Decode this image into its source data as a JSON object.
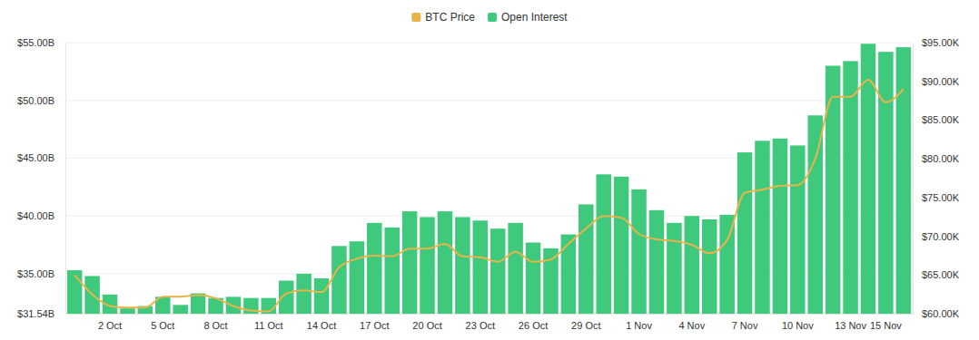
{
  "chart_data": {
    "type": "bar",
    "categories": [
      null,
      null,
      "2 Oct",
      null,
      null,
      "5 Oct",
      null,
      null,
      "8 Oct",
      null,
      null,
      "11 Oct",
      null,
      null,
      "14 Oct",
      null,
      null,
      "17 Oct",
      null,
      null,
      "20 Oct",
      null,
      null,
      "23 Oct",
      null,
      null,
      "26 Oct",
      null,
      null,
      "29 Oct",
      null,
      null,
      "1 Nov",
      null,
      null,
      "4 Nov",
      null,
      null,
      "7 Nov",
      null,
      null,
      "10 Nov",
      null,
      null,
      "13 Nov",
      null,
      "15 Nov",
      null
    ],
    "series": [
      {
        "name": "BTC Price",
        "type": "line",
        "axis": "y2",
        "color": "#e8b44a",
        "values": [
          65000,
          62500,
          61000,
          60800,
          60800,
          62200,
          62200,
          62400,
          62000,
          61000,
          60400,
          60300,
          62600,
          63000,
          62800,
          66000,
          67100,
          67500,
          67400,
          68400,
          68400,
          69000,
          67400,
          67300,
          66700,
          68000,
          66700,
          67000,
          69000,
          71000,
          72600,
          72400,
          70300,
          69600,
          69400,
          68900,
          67800,
          69500,
          75600,
          76000,
          76500,
          76600,
          80000,
          88000,
          88000,
          90200,
          87300,
          89000
        ]
      },
      {
        "name": "Open Interest",
        "type": "bar",
        "color": "#3fc97c",
        "values": [
          35.3,
          34.8,
          33.2,
          32.0,
          32.2,
          33.0,
          32.3,
          33.3,
          32.9,
          33.0,
          32.9,
          32.9,
          34.4,
          35.0,
          34.6,
          37.4,
          37.8,
          39.4,
          39.0,
          40.4,
          39.9,
          40.4,
          39.9,
          39.6,
          38.9,
          39.4,
          37.7,
          37.2,
          38.4,
          41.0,
          43.6,
          43.4,
          42.3,
          40.5,
          39.4,
          40.0,
          39.7,
          40.1,
          45.5,
          46.5,
          46.7,
          46.1,
          48.7,
          53.0,
          53.4,
          54.9,
          54.2,
          54.6
        ]
      }
    ],
    "ylim": [
      31.54,
      55
    ],
    "yticks": [
      {
        "value": 31.54,
        "label": "$31.54B"
      },
      {
        "value": 35,
        "label": "$35.00B"
      },
      {
        "value": 40,
        "label": "$40.00B"
      },
      {
        "value": 45,
        "label": "$45.00B"
      },
      {
        "value": 50,
        "label": "$50.00B"
      },
      {
        "value": 55,
        "label": "$55.00B"
      }
    ],
    "y2lim": [
      60000,
      95000
    ],
    "y2ticks": [
      {
        "value": 60000,
        "label": "$60.00K"
      },
      {
        "value": 65000,
        "label": "$65.00K"
      },
      {
        "value": 70000,
        "label": "$70.00K"
      },
      {
        "value": 75000,
        "label": "$75.00K"
      },
      {
        "value": 80000,
        "label": "$80.00K"
      },
      {
        "value": 85000,
        "label": "$85.00K"
      },
      {
        "value": 90000,
        "label": "$90.00K"
      },
      {
        "value": 95000,
        "label": "$95.00K"
      }
    ],
    "grid": true,
    "legend": "top"
  }
}
